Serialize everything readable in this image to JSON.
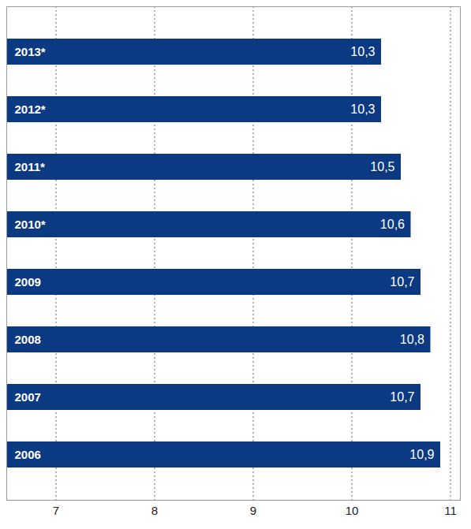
{
  "chart_data": {
    "type": "bar",
    "orientation": "horizontal",
    "categories": [
      "2013*",
      "2012*",
      "2011*",
      "2010*",
      "2009",
      "2008",
      "2007",
      "2006"
    ],
    "values": [
      10.3,
      10.3,
      10.5,
      10.6,
      10.7,
      10.8,
      10.7,
      10.9
    ],
    "value_labels": [
      "10,3",
      "10,3",
      "10,5",
      "10,6",
      "10,7",
      "10,8",
      "10,7",
      "10,9"
    ],
    "color": "#0b3a82",
    "xlim": [
      6.5,
      11.1
    ],
    "xticks": [
      7,
      8,
      9,
      10,
      11
    ],
    "grid": true,
    "data_labels": true
  }
}
